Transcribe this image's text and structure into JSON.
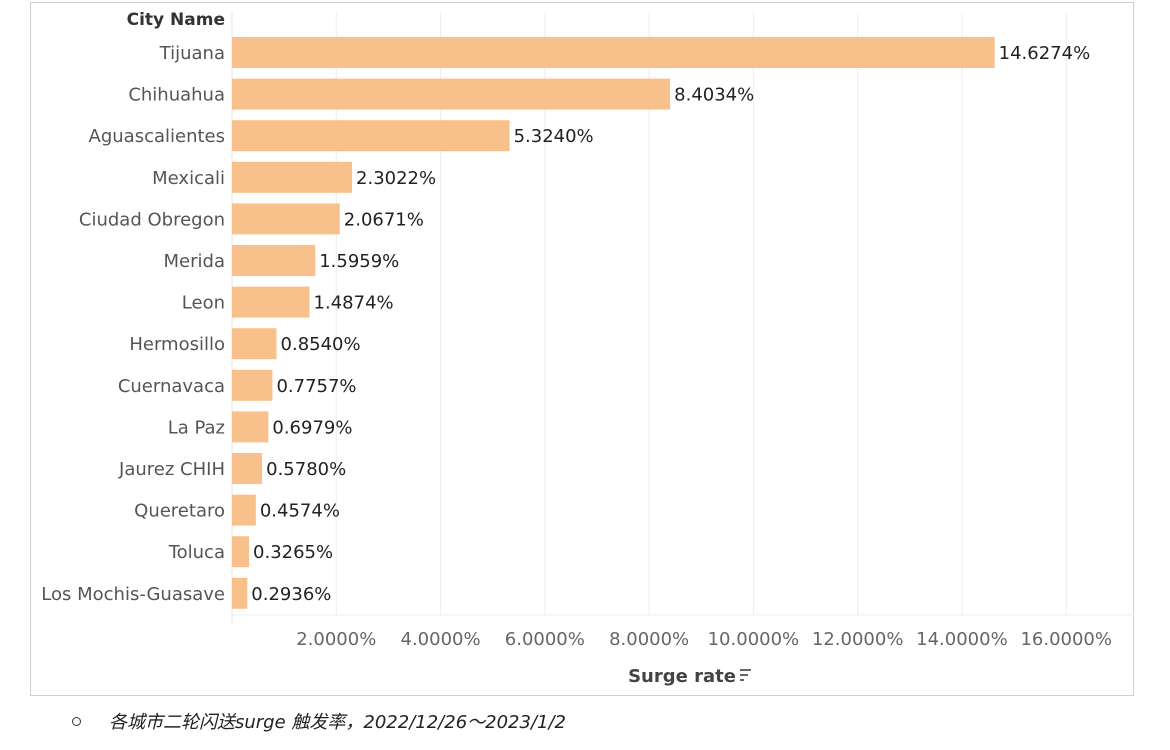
{
  "chart_data": {
    "type": "bar",
    "orientation": "horizontal",
    "row_header": "City Name",
    "categories": [
      "Tijuana",
      "Chihuahua",
      "Aguascalientes",
      "Mexicali",
      "Ciudad Obregon",
      "Merida",
      "Leon",
      "Hermosillo",
      "Cuernavaca",
      "La Paz",
      "Jaurez CHIH",
      "Queretaro",
      "Toluca",
      "Los Mochis-Guasave"
    ],
    "values": [
      14.6274,
      8.4034,
      5.324,
      2.3022,
      2.0671,
      1.5959,
      1.4874,
      0.854,
      0.7757,
      0.6979,
      0.578,
      0.4574,
      0.3265,
      0.2936
    ],
    "data_labels": [
      "14.6274%",
      "8.4034%",
      "5.3240%",
      "2.3022%",
      "2.0671%",
      "1.5959%",
      "1.4874%",
      "0.8540%",
      "0.7757%",
      "0.6979%",
      "0.5780%",
      "0.4574%",
      "0.3265%",
      "0.2936%"
    ],
    "xlabel": "Surge rate",
    "x_ticks": [
      2,
      4,
      6,
      8,
      10,
      12,
      14,
      16
    ],
    "x_tick_labels": [
      "2.0000%",
      "4.0000%",
      "6.0000%",
      "8.0000%",
      "10.0000%",
      "12.0000%",
      "14.0000%",
      "16.0000%"
    ],
    "xlim": [
      0,
      17.3
    ],
    "grid": true,
    "bar_color": "#f8c18b",
    "sort_icon": "sort-descending-icon"
  },
  "caption": {
    "text": "各城市二轮闪送surge 触发率，2022/12/26～2023/1/2"
  }
}
